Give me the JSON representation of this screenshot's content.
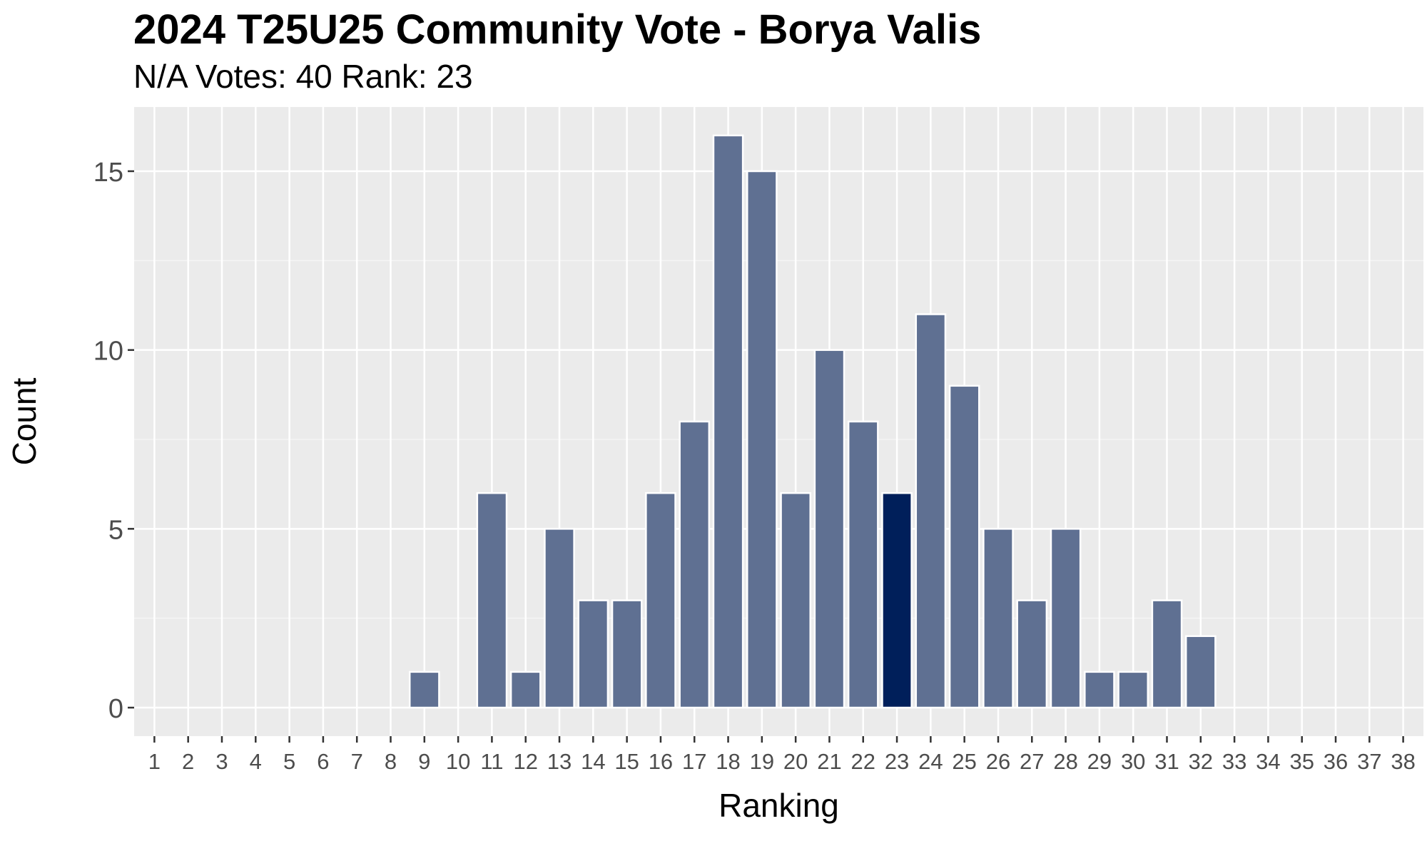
{
  "chart_data": {
    "type": "bar",
    "title": "2024 T25U25 Community Vote - Borya Valis",
    "subtitle": "N/A Votes: 40  Rank: 23",
    "xlabel": "Ranking",
    "ylabel": "Count",
    "categories": [
      "1",
      "2",
      "3",
      "4",
      "5",
      "6",
      "7",
      "8",
      "9",
      "10",
      "11",
      "12",
      "13",
      "14",
      "15",
      "16",
      "17",
      "18",
      "19",
      "20",
      "21",
      "22",
      "23",
      "24",
      "25",
      "26",
      "27",
      "28",
      "29",
      "30",
      "31",
      "32",
      "33",
      "34",
      "35",
      "36",
      "37",
      "38"
    ],
    "values": [
      0,
      0,
      0,
      0,
      0,
      0,
      0,
      0,
      1,
      0,
      6,
      1,
      5,
      3,
      3,
      6,
      8,
      16,
      15,
      6,
      10,
      8,
      6,
      11,
      9,
      5,
      3,
      5,
      1,
      1,
      3,
      2,
      0,
      0,
      0,
      0,
      0,
      0
    ],
    "highlight_category": "23",
    "yticks": [
      0,
      5,
      10,
      15
    ],
    "ylim": [
      0,
      16
    ],
    "grid": true,
    "legend": "none",
    "colors": {
      "bar": "#5f7092",
      "highlight": "#001f5a",
      "panel": "#ebebeb",
      "grid_major": "#ffffff",
      "grid_minor": "#f5f5f5"
    }
  }
}
